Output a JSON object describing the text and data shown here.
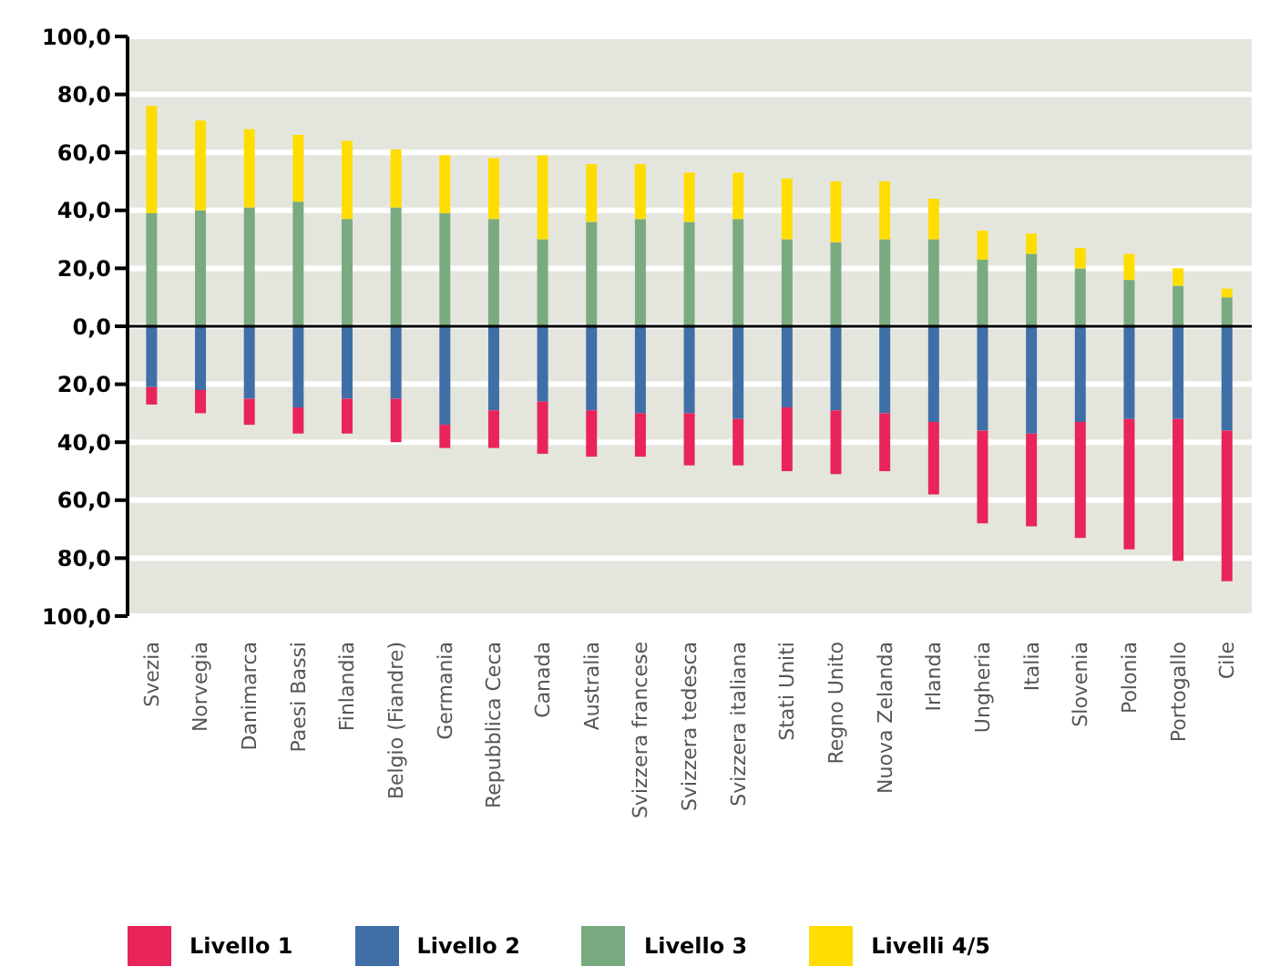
{
  "chart_data": {
    "type": "bar",
    "stacked": true,
    "categories": [
      "Svezia",
      "Norvegia",
      "Danimarca",
      "Paesi Bassi",
      "Finlandia",
      "Belgio (Fiandre)",
      "Germania",
      "Repubblica Ceca",
      "Canada",
      "Australia",
      "Svizzera francese",
      "Svizzera tedesca",
      "Svizzera italiana",
      "Stati Uniti",
      "Regno Unito",
      "Nuova Zelanda",
      "Irlanda",
      "Ungheria",
      "Italia",
      "Slovenia",
      "Polonia",
      "Portogallo",
      "Cile"
    ],
    "series": [
      {
        "name": "Livello 2",
        "color": "#3f6fa6",
        "values": [
          -21,
          -22,
          -25,
          -28,
          -25,
          -25,
          -34,
          -29,
          -26,
          -29,
          -30,
          -30,
          -32,
          -28,
          -29,
          -30,
          -33,
          -36,
          -37,
          -33,
          -32,
          -32,
          -36
        ]
      },
      {
        "name": "Livello 1",
        "color": "#e8245a",
        "values": [
          -6,
          -8,
          -9,
          -9,
          -12,
          -15,
          -8,
          -13,
          -18,
          -16,
          -15,
          -18,
          -16,
          -22,
          -22,
          -20,
          -25,
          -32,
          -32,
          -40,
          -45,
          -49,
          -52
        ]
      },
      {
        "name": "Livello 3",
        "color": "#7aab80",
        "values": [
          39,
          40,
          41,
          43,
          37,
          41,
          39,
          37,
          30,
          36,
          37,
          36,
          37,
          30,
          29,
          30,
          30,
          23,
          25,
          20,
          16,
          14,
          10
        ]
      },
      {
        "name": "Livelli 4/5",
        "color": "#ffdd00",
        "values": [
          37,
          31,
          27,
          23,
          27,
          20,
          20,
          21,
          29,
          20,
          19,
          17,
          16,
          21,
          21,
          20,
          14,
          10,
          7,
          7,
          9,
          6,
          3
        ]
      }
    ],
    "ylim": [
      -100,
      100
    ],
    "yticks": [
      {
        "value": -100,
        "label": "100,0"
      },
      {
        "value": -80,
        "label": "80,0"
      },
      {
        "value": -60,
        "label": "60,0"
      },
      {
        "value": -40,
        "label": "40,0"
      },
      {
        "value": -20,
        "label": "20,0"
      },
      {
        "value": 0,
        "label": "0,0"
      },
      {
        "value": 20,
        "label": "20,0"
      },
      {
        "value": 40,
        "label": "40,0"
      },
      {
        "value": 60,
        "label": "60,0"
      },
      {
        "value": 80,
        "label": "80,0"
      },
      {
        "value": 100,
        "label": "100,0"
      }
    ],
    "grid": "y",
    "legend": "bottom"
  }
}
